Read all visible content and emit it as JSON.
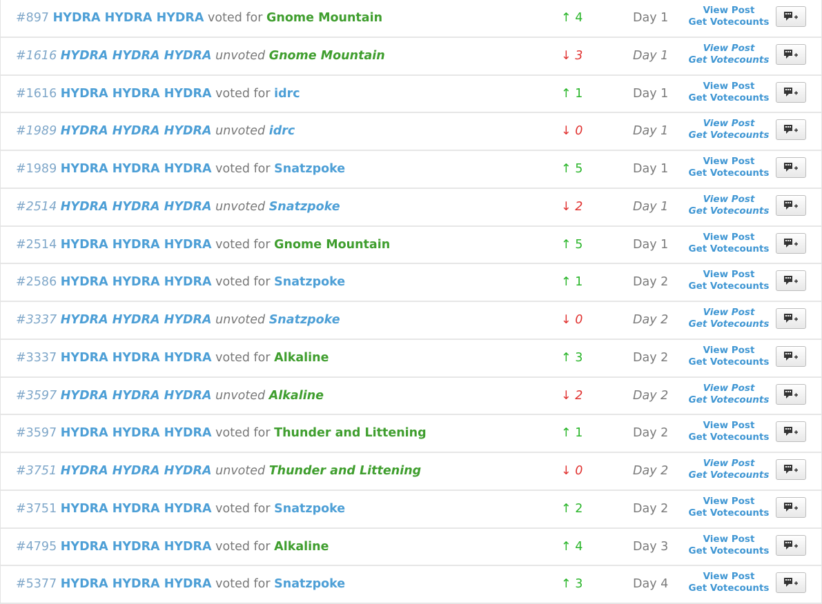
{
  "colors": {
    "player": "#4d9fd6",
    "post": "#7fa7c9",
    "target_green": "#3f9e2e",
    "target_blue": "#4d9fd6",
    "up": "#2ab52a",
    "down": "#e0312f",
    "link": "#3f96d3"
  },
  "icons": {
    "add_button": "chat-plus-icon"
  },
  "votes": [
    {
      "post": "#897",
      "player": "HYDRA HYDRA HYDRA",
      "verb": "voted for",
      "target": "Gnome Mountain",
      "target_color": "green",
      "kind": "vote",
      "arrow": "↑",
      "count": "4",
      "day": "Day 1",
      "view_label": "View Post",
      "count_label": "Get Votecounts"
    },
    {
      "post": "#1616",
      "player": "HYDRA HYDRA HYDRA",
      "verb": "unvoted",
      "target": "Gnome Mountain",
      "target_color": "green",
      "kind": "unvote",
      "arrow": "↓",
      "count": "3",
      "day": "Day 1",
      "view_label": "View Post",
      "count_label": "Get Votecounts"
    },
    {
      "post": "#1616",
      "player": "HYDRA HYDRA HYDRA",
      "verb": "voted for",
      "target": "idrc",
      "target_color": "blue",
      "kind": "vote",
      "arrow": "↑",
      "count": "1",
      "day": "Day 1",
      "view_label": "View Post",
      "count_label": "Get Votecounts"
    },
    {
      "post": "#1989",
      "player": "HYDRA HYDRA HYDRA",
      "verb": "unvoted",
      "target": "idrc",
      "target_color": "blue",
      "kind": "unvote",
      "arrow": "↓",
      "count": "0",
      "day": "Day 1",
      "view_label": "View Post",
      "count_label": "Get Votecounts"
    },
    {
      "post": "#1989",
      "player": "HYDRA HYDRA HYDRA",
      "verb": "voted for",
      "target": "Snatzpoke",
      "target_color": "blue",
      "kind": "vote",
      "arrow": "↑",
      "count": "5",
      "day": "Day 1",
      "view_label": "View Post",
      "count_label": "Get Votecounts"
    },
    {
      "post": "#2514",
      "player": "HYDRA HYDRA HYDRA",
      "verb": "unvoted",
      "target": "Snatzpoke",
      "target_color": "blue",
      "kind": "unvote",
      "arrow": "↓",
      "count": "2",
      "day": "Day 1",
      "view_label": "View Post",
      "count_label": "Get Votecounts"
    },
    {
      "post": "#2514",
      "player": "HYDRA HYDRA HYDRA",
      "verb": "voted for",
      "target": "Gnome Mountain",
      "target_color": "green",
      "kind": "vote",
      "arrow": "↑",
      "count": "5",
      "day": "Day 1",
      "view_label": "View Post",
      "count_label": "Get Votecounts"
    },
    {
      "post": "#2586",
      "player": "HYDRA HYDRA HYDRA",
      "verb": "voted for",
      "target": "Snatzpoke",
      "target_color": "blue",
      "kind": "vote",
      "arrow": "↑",
      "count": "1",
      "day": "Day 2",
      "view_label": "View Post",
      "count_label": "Get Votecounts"
    },
    {
      "post": "#3337",
      "player": "HYDRA HYDRA HYDRA",
      "verb": "unvoted",
      "target": "Snatzpoke",
      "target_color": "blue",
      "kind": "unvote",
      "arrow": "↓",
      "count": "0",
      "day": "Day 2",
      "view_label": "View Post",
      "count_label": "Get Votecounts"
    },
    {
      "post": "#3337",
      "player": "HYDRA HYDRA HYDRA",
      "verb": "voted for",
      "target": "Alkaline",
      "target_color": "green",
      "kind": "vote",
      "arrow": "↑",
      "count": "3",
      "day": "Day 2",
      "view_label": "View Post",
      "count_label": "Get Votecounts"
    },
    {
      "post": "#3597",
      "player": "HYDRA HYDRA HYDRA",
      "verb": "unvoted",
      "target": "Alkaline",
      "target_color": "green",
      "kind": "unvote",
      "arrow": "↓",
      "count": "2",
      "day": "Day 2",
      "view_label": "View Post",
      "count_label": "Get Votecounts"
    },
    {
      "post": "#3597",
      "player": "HYDRA HYDRA HYDRA",
      "verb": "voted for",
      "target": "Thunder and Littening",
      "target_color": "green",
      "kind": "vote",
      "arrow": "↑",
      "count": "1",
      "day": "Day 2",
      "view_label": "View Post",
      "count_label": "Get Votecounts"
    },
    {
      "post": "#3751",
      "player": "HYDRA HYDRA HYDRA",
      "verb": "unvoted",
      "target": "Thunder and Littening",
      "target_color": "green",
      "kind": "unvote",
      "arrow": "↓",
      "count": "0",
      "day": "Day 2",
      "view_label": "View Post",
      "count_label": "Get Votecounts"
    },
    {
      "post": "#3751",
      "player": "HYDRA HYDRA HYDRA",
      "verb": "voted for",
      "target": "Snatzpoke",
      "target_color": "blue",
      "kind": "vote",
      "arrow": "↑",
      "count": "2",
      "day": "Day 2",
      "view_label": "View Post",
      "count_label": "Get Votecounts"
    },
    {
      "post": "#4795",
      "player": "HYDRA HYDRA HYDRA",
      "verb": "voted for",
      "target": "Alkaline",
      "target_color": "green",
      "kind": "vote",
      "arrow": "↑",
      "count": "4",
      "day": "Day 3",
      "view_label": "View Post",
      "count_label": "Get Votecounts"
    },
    {
      "post": "#5377",
      "player": "HYDRA HYDRA HYDRA",
      "verb": "voted for",
      "target": "Snatzpoke",
      "target_color": "blue",
      "kind": "vote",
      "arrow": "↑",
      "count": "3",
      "day": "Day 4",
      "view_label": "View Post",
      "count_label": "Get Votecounts"
    }
  ]
}
